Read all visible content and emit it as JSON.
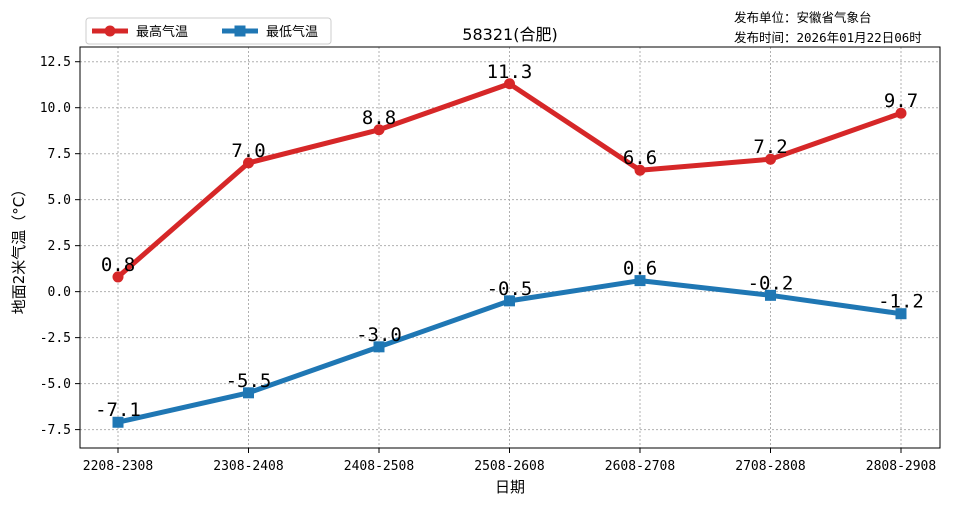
{
  "publisher": {
    "unit_line": "发布单位：安徽省气象台",
    "time_line": "发布时间：2026年01月22日06时"
  },
  "colors": {
    "max": "#d62728",
    "min": "#1f77b4"
  },
  "chart_data": {
    "type": "line",
    "title": "58321(合肥)",
    "xlabel": "日期",
    "ylabel": "地面2米气温（°C）",
    "categories": [
      "2208-2308",
      "2308-2408",
      "2408-2508",
      "2508-2608",
      "2608-2708",
      "2708-2808",
      "2808-2908"
    ],
    "ylim": [
      -8.5,
      13.3
    ],
    "yticks": [
      "-7.5",
      "-5.0",
      "-2.5",
      "0.0",
      "2.5",
      "5.0",
      "7.5",
      "10.0",
      "12.5"
    ],
    "grid": true,
    "legend_position": "top-left",
    "series": [
      {
        "name": "最高气温",
        "marker": "circle",
        "color": "#d62728",
        "values": [
          0.8,
          7.0,
          8.8,
          11.3,
          6.6,
          7.2,
          9.7
        ],
        "labels": [
          "0.8",
          "7.0",
          "8.8",
          "11.3",
          "6.6",
          "7.2",
          "9.7"
        ]
      },
      {
        "name": "最低气温",
        "marker": "square",
        "color": "#1f77b4",
        "values": [
          -7.1,
          -5.5,
          -3.0,
          -0.5,
          0.6,
          -0.2,
          -1.2
        ],
        "labels": [
          "-7.1",
          "-5.5",
          "-3.0",
          "-0.5",
          "0.6",
          "-0.2",
          "-1.2"
        ]
      }
    ]
  }
}
